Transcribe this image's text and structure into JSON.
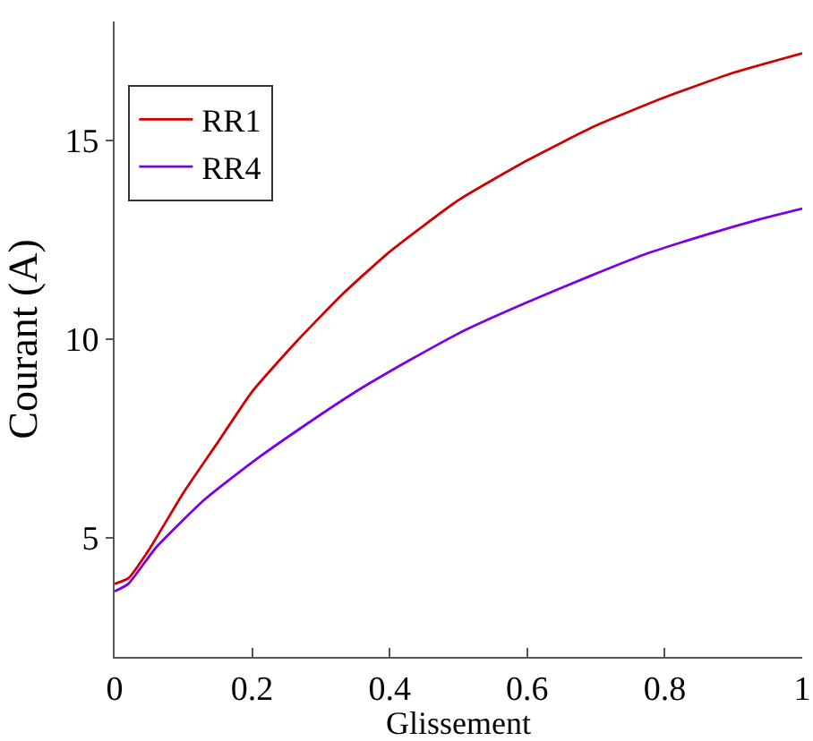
{
  "chart_data": {
    "type": "line",
    "xlabel": "Glissement",
    "ylabel": "Courant (A)",
    "xlim": [
      0,
      1
    ],
    "xticks": [
      0,
      0.2,
      0.4,
      0.6,
      0.8,
      1
    ],
    "ylim": [
      2,
      18
    ],
    "yticks": [
      5,
      10,
      15
    ],
    "grid": false,
    "legend": "top left",
    "marker": "none",
    "line_style": "solid",
    "series": [
      {
        "name": "RR1",
        "color": "#d00000",
        "x": [
          0,
          0.02,
          0.05,
          0.1,
          0.15,
          0.2,
          0.265,
          0.333,
          0.4,
          0.5,
          0.6,
          0.7,
          0.8,
          0.9,
          1
        ],
        "values": [
          3.84,
          3.98,
          4.7,
          6.13,
          7.4,
          8.68,
          9.95,
          11.16,
          12.2,
          13.5,
          14.5,
          15.38,
          16.09,
          16.71,
          17.2
        ]
      },
      {
        "name": "RR4",
        "color": "#7a00e6",
        "x": [
          0,
          0.02,
          0.06,
          0.13,
          0.2,
          0.28,
          0.35,
          0.43,
          0.51,
          0.6,
          0.69,
          0.77,
          0.86,
          0.94,
          1
        ],
        "values": [
          3.65,
          3.84,
          4.75,
          5.95,
          6.9,
          7.87,
          8.67,
          9.48,
          10.23,
          10.93,
          11.58,
          12.13,
          12.63,
          13.03,
          13.29
        ]
      }
    ]
  }
}
